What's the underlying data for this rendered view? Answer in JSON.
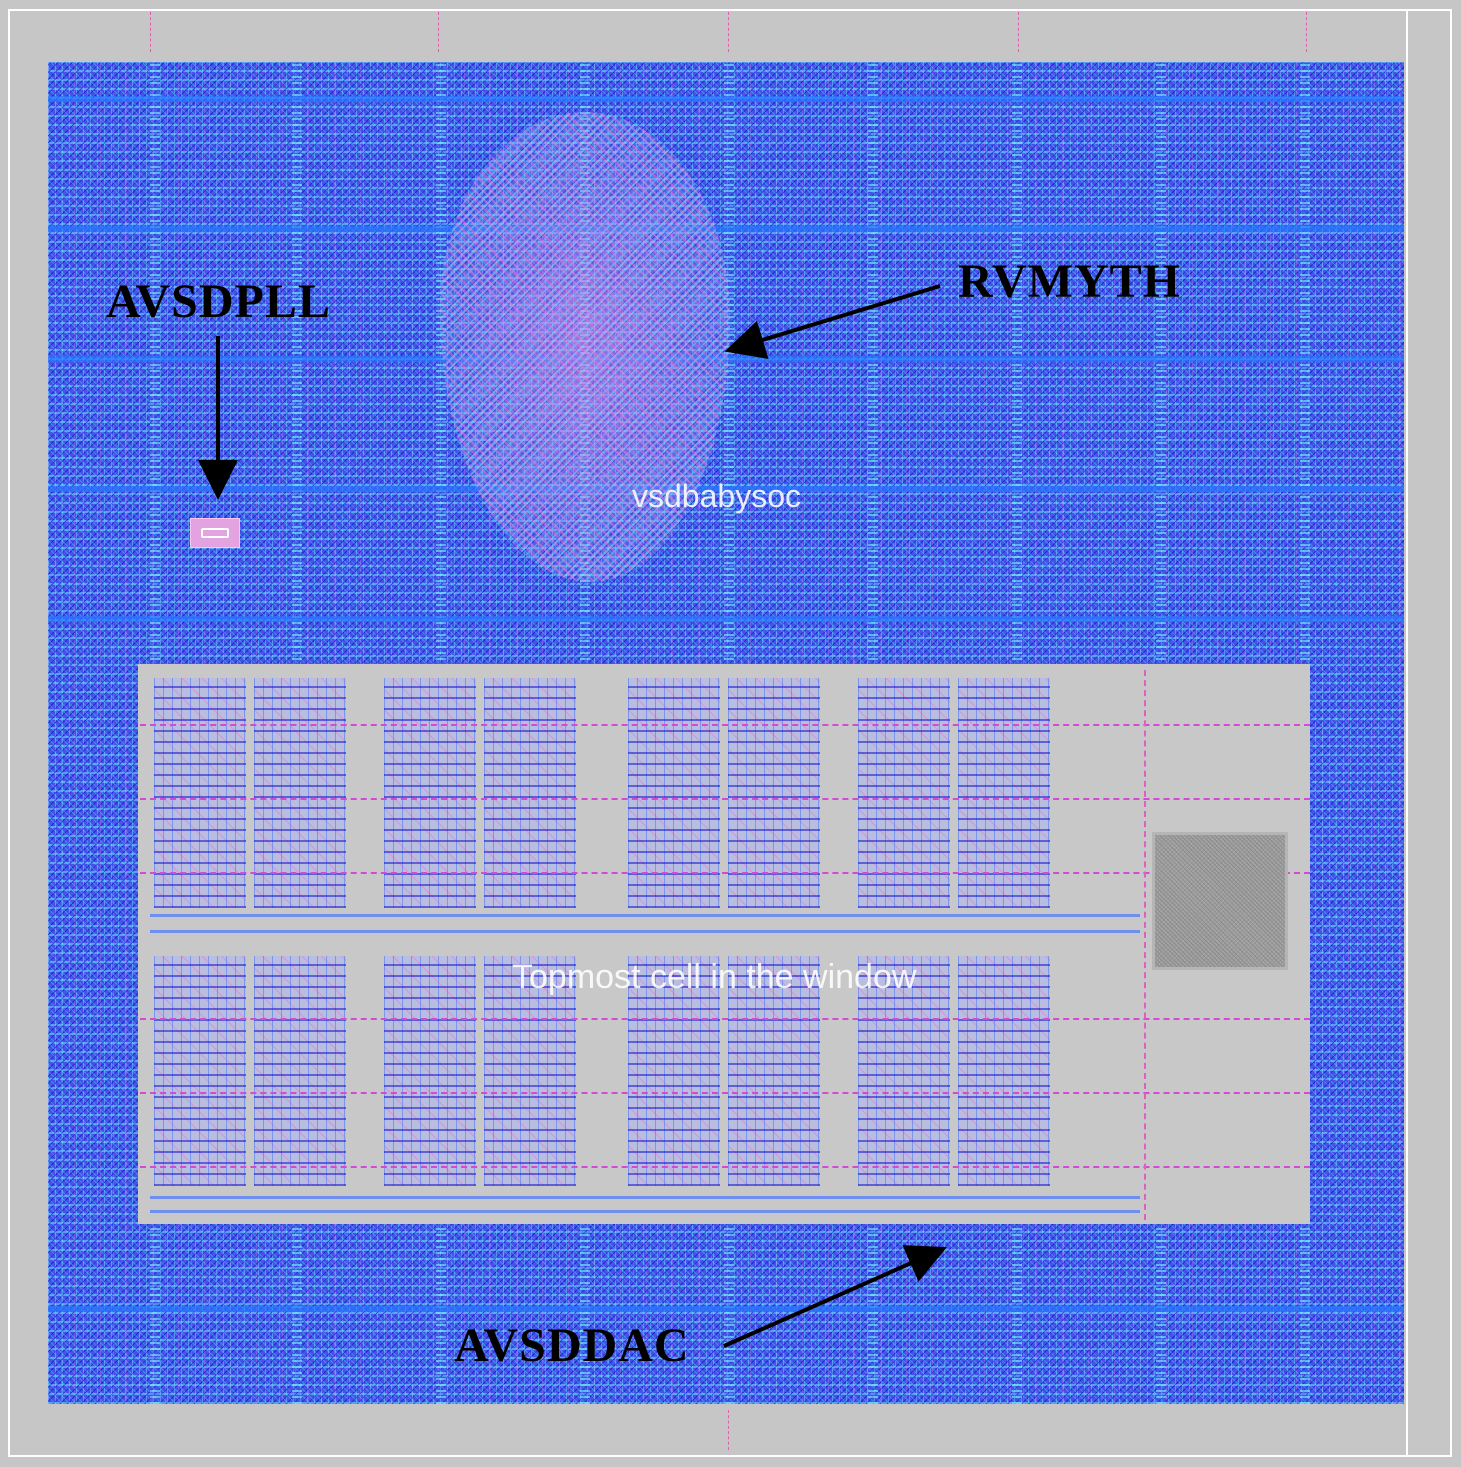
{
  "layout_view": {
    "cell_labels": {
      "top_cell": "vsdbabysoc",
      "center_cell": "Topmost cell in the window"
    },
    "annotations": {
      "pll": "AVSDPLL",
      "cpu": "RVMYTH",
      "dac": "AVSDDAC"
    },
    "colors": {
      "background": "#c6c6c6",
      "metal_fill": "#4a52e6",
      "dac_block": "#c8c8c8",
      "annotation_text": "#000000",
      "cell_label_text": "#ffffff",
      "pink_guides": "#d44ad4"
    }
  }
}
